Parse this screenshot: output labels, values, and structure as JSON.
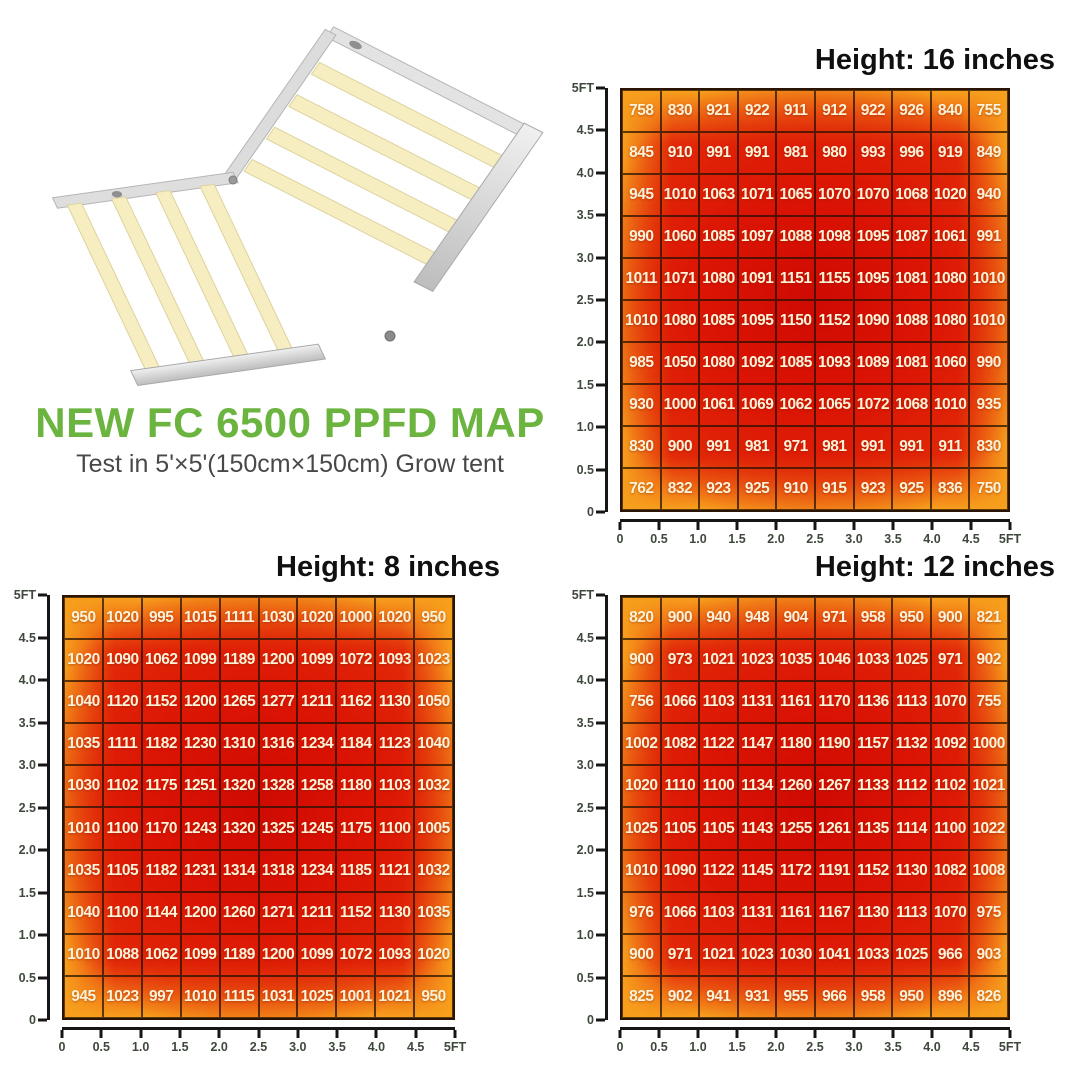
{
  "product": {
    "title": "NEW FC 6500 PPFD MAP",
    "subtitle": "Test in 5'×5'(150cm×150cm) Grow tent"
  },
  "colors": {
    "title_green": "#6cb440",
    "heat_low_orange": "#f7a01d",
    "heat_mid_red": "#e4300a",
    "heat_high_red": "#cf0a01",
    "grid_line": "#2a1505",
    "cell_text": "#fcf2d8",
    "axis_text": "#3e483c",
    "heading_text": "#101010"
  },
  "chart_data": [
    {
      "type": "heatmap",
      "title": "Height: 16 inches",
      "height_label": "16 inches",
      "grid_size": "10x10",
      "x_ticks": [
        "0",
        "0.5",
        "1.0",
        "1.5",
        "2.0",
        "2.5",
        "3.0",
        "3.5",
        "4.0",
        "4.5",
        "5FT"
      ],
      "y_ticks": [
        "5FT",
        "4.5",
        "4.0",
        "3.5",
        "3.0",
        "2.5",
        "2.0",
        "1.5",
        "1.0",
        "0.5",
        "0"
      ],
      "values": [
        [
          758,
          830,
          921,
          922,
          911,
          912,
          922,
          926,
          840,
          755
        ],
        [
          845,
          910,
          991,
          991,
          981,
          980,
          993,
          996,
          919,
          849
        ],
        [
          945,
          1010,
          1063,
          1071,
          1065,
          1070,
          1070,
          1068,
          1020,
          940
        ],
        [
          990,
          1060,
          1085,
          1097,
          1088,
          1098,
          1095,
          1087,
          1061,
          991
        ],
        [
          1011,
          1071,
          1080,
          1091,
          1151,
          1155,
          1095,
          1081,
          1080,
          1010
        ],
        [
          1010,
          1080,
          1085,
          1095,
          1150,
          1152,
          1090,
          1088,
          1080,
          1010
        ],
        [
          985,
          1050,
          1080,
          1092,
          1085,
          1093,
          1089,
          1081,
          1060,
          990
        ],
        [
          930,
          1000,
          1061,
          1069,
          1062,
          1065,
          1072,
          1068,
          1010,
          935
        ],
        [
          830,
          900,
          991,
          981,
          971,
          981,
          991,
          991,
          911,
          830
        ],
        [
          762,
          832,
          923,
          925,
          910,
          915,
          923,
          925,
          836,
          750
        ]
      ]
    },
    {
      "type": "heatmap",
      "title": "Height: 8 inches",
      "height_label": "8 inches",
      "grid_size": "10x10",
      "x_ticks": [
        "0",
        "0.5",
        "1.0",
        "1.5",
        "2.0",
        "2.5",
        "3.0",
        "3.5",
        "4.0",
        "4.5",
        "5FT"
      ],
      "y_ticks": [
        "5FT",
        "4.5",
        "4.0",
        "3.5",
        "3.0",
        "2.5",
        "2.0",
        "1.5",
        "1.0",
        "0.5",
        "0"
      ],
      "values": [
        [
          950,
          1020,
          995,
          1015,
          1111,
          1030,
          1020,
          1000,
          1020,
          950
        ],
        [
          1020,
          1090,
          1062,
          1099,
          1189,
          1200,
          1099,
          1072,
          1093,
          1023
        ],
        [
          1040,
          1120,
          1152,
          1200,
          1265,
          1277,
          1211,
          1162,
          1130,
          1050
        ],
        [
          1035,
          1111,
          1182,
          1230,
          1310,
          1316,
          1234,
          1184,
          1123,
          1040
        ],
        [
          1030,
          1102,
          1175,
          1251,
          1320,
          1328,
          1258,
          1180,
          1103,
          1032
        ],
        [
          1010,
          1100,
          1170,
          1243,
          1320,
          1325,
          1245,
          1175,
          1100,
          1005
        ],
        [
          1035,
          1105,
          1182,
          1231,
          1314,
          1318,
          1234,
          1185,
          1121,
          1032
        ],
        [
          1040,
          1100,
          1144,
          1200,
          1260,
          1271,
          1211,
          1152,
          1130,
          1035
        ],
        [
          1010,
          1088,
          1062,
          1099,
          1189,
          1200,
          1099,
          1072,
          1093,
          1020
        ],
        [
          945,
          1023,
          997,
          1010,
          1115,
          1031,
          1025,
          1001,
          1021,
          950
        ]
      ]
    },
    {
      "type": "heatmap",
      "title": "Height: 12 inches",
      "height_label": "12 inches",
      "grid_size": "10x10",
      "x_ticks": [
        "0",
        "0.5",
        "1.0",
        "1.5",
        "2.0",
        "2.5",
        "3.0",
        "3.5",
        "4.0",
        "4.5",
        "5FT"
      ],
      "y_ticks": [
        "5FT",
        "4.5",
        "4.0",
        "3.5",
        "3.0",
        "2.5",
        "2.0",
        "1.5",
        "1.0",
        "0.5",
        "0"
      ],
      "values": [
        [
          820,
          900,
          940,
          948,
          904,
          971,
          958,
          950,
          900,
          821
        ],
        [
          900,
          973,
          1021,
          1023,
          1035,
          1046,
          1033,
          1025,
          971,
          902
        ],
        [
          756,
          1066,
          1103,
          1131,
          1161,
          1170,
          1136,
          1113,
          1070,
          755
        ],
        [
          1002,
          1082,
          1122,
          1147,
          1180,
          1190,
          1157,
          1132,
          1092,
          1000
        ],
        [
          1020,
          1110,
          1100,
          1134,
          1260,
          1267,
          1133,
          1112,
          1102,
          1021
        ],
        [
          1025,
          1105,
          1105,
          1143,
          1255,
          1261,
          1135,
          1114,
          1100,
          1022
        ],
        [
          1010,
          1090,
          1122,
          1145,
          1172,
          1191,
          1152,
          1130,
          1082,
          1008
        ],
        [
          976,
          1066,
          1103,
          1131,
          1161,
          1167,
          1130,
          1113,
          1070,
          975
        ],
        [
          900,
          971,
          1021,
          1023,
          1030,
          1041,
          1033,
          1025,
          966,
          903
        ],
        [
          825,
          902,
          941,
          931,
          955,
          966,
          958,
          950,
          896,
          826
        ]
      ]
    }
  ]
}
